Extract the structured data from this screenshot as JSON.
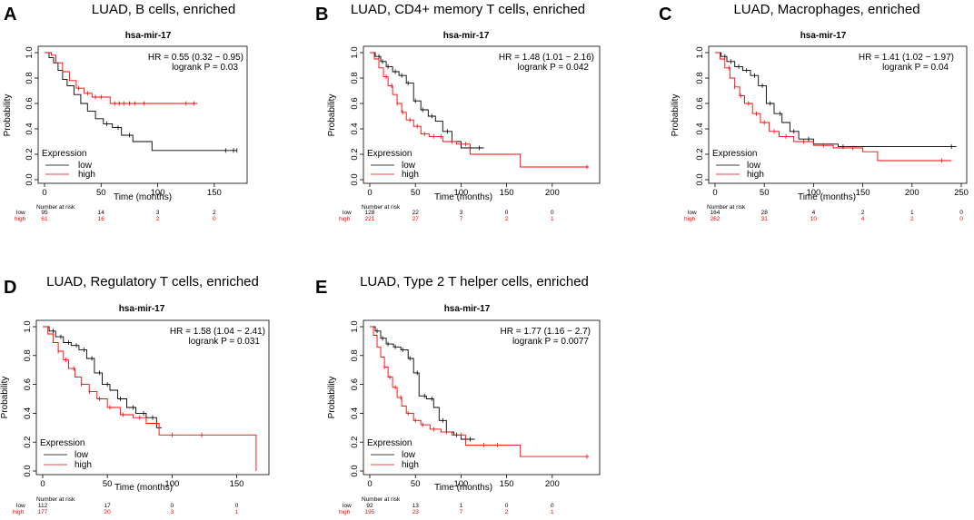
{
  "colors": {
    "low": "#000000",
    "high": "#ff0000",
    "frame": "#000000"
  },
  "chart_data": [
    {
      "type": "line",
      "panel_label": "A",
      "title": "LUAD, B cells, enriched",
      "subtitle": "hsa-mir-17",
      "hr_text": "HR = 0.55 (0.32 − 0.95)",
      "logrank_text": "logrank P = 0.03",
      "xlabel": "Time (months)",
      "ylabel": "Probability",
      "xlim": [
        0,
        175
      ],
      "ylim": [
        0,
        1
      ],
      "xticks": [
        0,
        50,
        100,
        150
      ],
      "yticks": [
        "0.0",
        "0.2",
        "0.4",
        "0.6",
        "0.8",
        "1.0"
      ],
      "legend_title": "Expression",
      "legend_labels": [
        "low",
        "high"
      ],
      "risk_title": "Number at risk",
      "risk_rows": [
        {
          "label": "low",
          "values": [
            "95",
            "14",
            "3",
            "2"
          ]
        },
        {
          "label": "high",
          "values": [
            "61",
            "16",
            "2",
            "0"
          ]
        }
      ],
      "series": [
        {
          "name": "low",
          "points": [
            [
              0,
              1
            ],
            [
              4,
              0.96
            ],
            [
              8,
              0.92
            ],
            [
              12,
              0.86
            ],
            [
              16,
              0.79
            ],
            [
              20,
              0.74
            ],
            [
              26,
              0.67
            ],
            [
              32,
              0.6
            ],
            [
              38,
              0.54
            ],
            [
              45,
              0.48
            ],
            [
              52,
              0.44
            ],
            [
              60,
              0.41
            ],
            [
              68,
              0.35
            ],
            [
              78,
              0.3
            ],
            [
              90,
              0.3
            ],
            [
              95,
              0.23
            ],
            [
              170,
              0.23
            ]
          ],
          "censors": [
            55,
            65,
            75,
            160,
            167,
            170
          ]
        },
        {
          "name": "high",
          "points": [
            [
              0,
              1
            ],
            [
              6,
              0.98
            ],
            [
              10,
              0.92
            ],
            [
              16,
              0.85
            ],
            [
              22,
              0.78
            ],
            [
              28,
              0.72
            ],
            [
              35,
              0.68
            ],
            [
              42,
              0.65
            ],
            [
              58,
              0.6
            ],
            [
              135,
              0.6
            ]
          ],
          "censors": [
            30,
            38,
            45,
            50,
            62,
            66,
            70,
            75,
            80,
            88,
            125,
            132
          ]
        }
      ]
    },
    {
      "type": "line",
      "panel_label": "B",
      "title": "LUAD, CD4+ memory T cells, enriched",
      "subtitle": "hsa-mir-17",
      "hr_text": "HR = 1.48 (1.01 − 2.16)",
      "logrank_text": "logrank P = 0.042",
      "xlabel": "Time (months)",
      "ylabel": "Probability",
      "xlim": [
        0,
        245
      ],
      "ylim": [
        0,
        1
      ],
      "xticks": [
        0,
        50,
        100,
        150,
        200
      ],
      "yticks": [
        "0.0",
        "0.2",
        "0.4",
        "0.6",
        "0.8",
        "1.0"
      ],
      "legend_title": "Expression",
      "legend_labels": [
        "low",
        "high"
      ],
      "risk_title": "Number at risk",
      "risk_rows": [
        {
          "label": "low",
          "values": [
            "128",
            "22",
            "3",
            "0",
            "0"
          ]
        },
        {
          "label": "high",
          "values": [
            "221",
            "27",
            "7",
            "2",
            "1"
          ]
        }
      ],
      "series": [
        {
          "name": "low",
          "points": [
            [
              0,
              1
            ],
            [
              6,
              0.97
            ],
            [
              12,
              0.93
            ],
            [
              18,
              0.89
            ],
            [
              25,
              0.85
            ],
            [
              32,
              0.82
            ],
            [
              40,
              0.76
            ],
            [
              48,
              0.62
            ],
            [
              56,
              0.55
            ],
            [
              64,
              0.5
            ],
            [
              72,
              0.46
            ],
            [
              80,
              0.38
            ],
            [
              90,
              0.3
            ],
            [
              100,
              0.25
            ],
            [
              125,
              0.25
            ]
          ],
          "censors": [
            10,
            14,
            20,
            28,
            35,
            42,
            50,
            58,
            68,
            85,
            110,
            120
          ]
        },
        {
          "name": "high",
          "points": [
            [
              0,
              1
            ],
            [
              5,
              0.95
            ],
            [
              10,
              0.88
            ],
            [
              15,
              0.81
            ],
            [
              20,
              0.74
            ],
            [
              25,
              0.67
            ],
            [
              30,
              0.6
            ],
            [
              35,
              0.53
            ],
            [
              40,
              0.47
            ],
            [
              48,
              0.42
            ],
            [
              56,
              0.36
            ],
            [
              65,
              0.34
            ],
            [
              80,
              0.3
            ],
            [
              95,
              0.28
            ],
            [
              110,
              0.2
            ],
            [
              165,
              0.2
            ],
            [
              165,
              0.1
            ],
            [
              240,
              0.1
            ]
          ],
          "censors": [
            18,
            24,
            30,
            36,
            44,
            52,
            60,
            70,
            78,
            90,
            105,
            238
          ]
        }
      ]
    },
    {
      "type": "line",
      "panel_label": "C",
      "title": "LUAD, Macrophages, enriched",
      "subtitle": "hsa-mir-17",
      "hr_text": "HR = 1.41 (1.02 − 1.97)",
      "logrank_text": "logrank P = 0.04",
      "xlabel": "Time (months)",
      "ylabel": "Probability",
      "xlim": [
        0,
        250
      ],
      "ylim": [
        0,
        1
      ],
      "xticks": [
        0,
        50,
        100,
        150,
        200,
        250
      ],
      "yticks": [
        "0.0",
        "0.2",
        "0.4",
        "0.6",
        "0.8",
        "1.0"
      ],
      "legend_title": "Expression",
      "legend_labels": [
        "low",
        "high"
      ],
      "risk_title": "Number at risk",
      "risk_rows": [
        {
          "label": "low",
          "values": [
            "164",
            "28",
            "4",
            "2",
            "1",
            "0"
          ]
        },
        {
          "label": "high",
          "values": [
            "262",
            "31",
            "10",
            "4",
            "2",
            "0"
          ]
        }
      ],
      "series": [
        {
          "name": "low",
          "points": [
            [
              0,
              1
            ],
            [
              6,
              0.97
            ],
            [
              12,
              0.93
            ],
            [
              20,
              0.89
            ],
            [
              28,
              0.86
            ],
            [
              36,
              0.82
            ],
            [
              44,
              0.74
            ],
            [
              52,
              0.6
            ],
            [
              60,
              0.52
            ],
            [
              68,
              0.45
            ],
            [
              76,
              0.38
            ],
            [
              85,
              0.32
            ],
            [
              100,
              0.28
            ],
            [
              125,
              0.26
            ],
            [
              245,
              0.26
            ]
          ],
          "censors": [
            10,
            16,
            24,
            32,
            40,
            48,
            56,
            66,
            80,
            95,
            130,
            240
          ]
        },
        {
          "name": "high",
          "points": [
            [
              0,
              1
            ],
            [
              5,
              0.95
            ],
            [
              10,
              0.88
            ],
            [
              15,
              0.8
            ],
            [
              20,
              0.73
            ],
            [
              25,
              0.66
            ],
            [
              30,
              0.6
            ],
            [
              38,
              0.52
            ],
            [
              46,
              0.45
            ],
            [
              55,
              0.38
            ],
            [
              65,
              0.34
            ],
            [
              80,
              0.3
            ],
            [
              100,
              0.27
            ],
            [
              120,
              0.25
            ],
            [
              150,
              0.22
            ],
            [
              165,
              0.22
            ],
            [
              165,
              0.15
            ],
            [
              240,
              0.15
            ]
          ],
          "censors": [
            14,
            20,
            26,
            34,
            42,
            50,
            60,
            72,
            90,
            110,
            140,
            230
          ]
        }
      ]
    },
    {
      "type": "line",
      "panel_label": "D",
      "title": "LUAD, Regulatory T cells, enriched",
      "subtitle": "hsa-mir-17",
      "hr_text": "HR = 1.58 (1.04 − 2.41)",
      "logrank_text": "logrank P = 0.031",
      "xlabel": "Time (months)",
      "ylabel": "Probability",
      "xlim": [
        0,
        170
      ],
      "ylim": [
        0,
        1
      ],
      "xticks": [
        0,
        50,
        100,
        150
      ],
      "yticks": [
        "0.0",
        "0.2",
        "0.4",
        "0.6",
        "0.8",
        "1.0"
      ],
      "legend_title": "Expression",
      "legend_labels": [
        "low",
        "high"
      ],
      "risk_title": "Number at risk",
      "risk_rows": [
        {
          "label": "low",
          "values": [
            "112",
            "17",
            "0",
            "0"
          ]
        },
        {
          "label": "high",
          "values": [
            "177",
            "20",
            "3",
            "1"
          ]
        }
      ],
      "series": [
        {
          "name": "low",
          "points": [
            [
              0,
              1
            ],
            [
              5,
              0.97
            ],
            [
              10,
              0.93
            ],
            [
              16,
              0.89
            ],
            [
              22,
              0.87
            ],
            [
              28,
              0.84
            ],
            [
              34,
              0.78
            ],
            [
              40,
              0.68
            ],
            [
              46,
              0.6
            ],
            [
              52,
              0.56
            ],
            [
              58,
              0.5
            ],
            [
              65,
              0.44
            ],
            [
              72,
              0.4
            ],
            [
              80,
              0.37
            ],
            [
              88,
              0.3
            ],
            [
              92,
              0.3
            ]
          ],
          "censors": [
            8,
            14,
            20,
            26,
            32,
            38,
            44,
            50,
            60,
            70,
            78,
            85
          ]
        },
        {
          "name": "high",
          "points": [
            [
              0,
              1
            ],
            [
              4,
              0.95
            ],
            [
              8,
              0.89
            ],
            [
              12,
              0.83
            ],
            [
              16,
              0.77
            ],
            [
              20,
              0.71
            ],
            [
              25,
              0.65
            ],
            [
              30,
              0.6
            ],
            [
              36,
              0.55
            ],
            [
              42,
              0.5
            ],
            [
              50,
              0.44
            ],
            [
              60,
              0.39
            ],
            [
              70,
              0.37
            ],
            [
              80,
              0.33
            ],
            [
              90,
              0.25
            ],
            [
              165,
              0.25
            ],
            [
              165,
              0
            ]
          ],
          "censors": [
            12,
            18,
            24,
            30,
            36,
            44,
            52,
            62,
            75,
            100,
            123
          ]
        }
      ]
    },
    {
      "type": "line",
      "panel_label": "E",
      "title": "LUAD, Type 2 T helper cells, enriched",
      "subtitle": "hsa-mir-17",
      "hr_text": "HR = 1.77 (1.16 − 2.7)",
      "logrank_text": "logrank P = 0.0077",
      "xlabel": "Time (months)",
      "ylabel": "Probability",
      "xlim": [
        0,
        245
      ],
      "ylim": [
        0,
        1
      ],
      "xticks": [
        0,
        50,
        100,
        150,
        200
      ],
      "yticks": [
        "0.0",
        "0.2",
        "0.4",
        "0.6",
        "0.8",
        "1.0"
      ],
      "legend_title": "Expression",
      "legend_labels": [
        "low",
        "high"
      ],
      "risk_title": "Number at risk",
      "risk_rows": [
        {
          "label": "low",
          "values": [
            "92",
            "13",
            "1",
            "0",
            "0"
          ]
        },
        {
          "label": "high",
          "values": [
            "195",
            "23",
            "7",
            "2",
            "1"
          ]
        }
      ],
      "series": [
        {
          "name": "low",
          "points": [
            [
              0,
              1
            ],
            [
              6,
              0.97
            ],
            [
              12,
              0.92
            ],
            [
              18,
              0.88
            ],
            [
              26,
              0.86
            ],
            [
              34,
              0.84
            ],
            [
              42,
              0.78
            ],
            [
              48,
              0.68
            ],
            [
              54,
              0.52
            ],
            [
              62,
              0.5
            ],
            [
              70,
              0.44
            ],
            [
              76,
              0.35
            ],
            [
              84,
              0.27
            ],
            [
              92,
              0.25
            ],
            [
              100,
              0.22
            ],
            [
              115,
              0.22
            ]
          ],
          "censors": [
            8,
            14,
            20,
            28,
            36,
            44,
            52,
            60,
            68,
            80,
            95,
            110
          ]
        },
        {
          "name": "high",
          "points": [
            [
              0,
              1
            ],
            [
              4,
              0.94
            ],
            [
              8,
              0.86
            ],
            [
              12,
              0.79
            ],
            [
              16,
              0.72
            ],
            [
              20,
              0.65
            ],
            [
              25,
              0.58
            ],
            [
              30,
              0.51
            ],
            [
              35,
              0.45
            ],
            [
              40,
              0.4
            ],
            [
              48,
              0.35
            ],
            [
              56,
              0.32
            ],
            [
              66,
              0.29
            ],
            [
              78,
              0.27
            ],
            [
              90,
              0.25
            ],
            [
              105,
              0.18
            ],
            [
              165,
              0.18
            ],
            [
              165,
              0.1
            ],
            [
              240,
              0.1
            ]
          ],
          "censors": [
            16,
            22,
            28,
            34,
            42,
            50,
            58,
            70,
            84,
            100,
            125,
            140,
            238
          ]
        }
      ]
    }
  ]
}
